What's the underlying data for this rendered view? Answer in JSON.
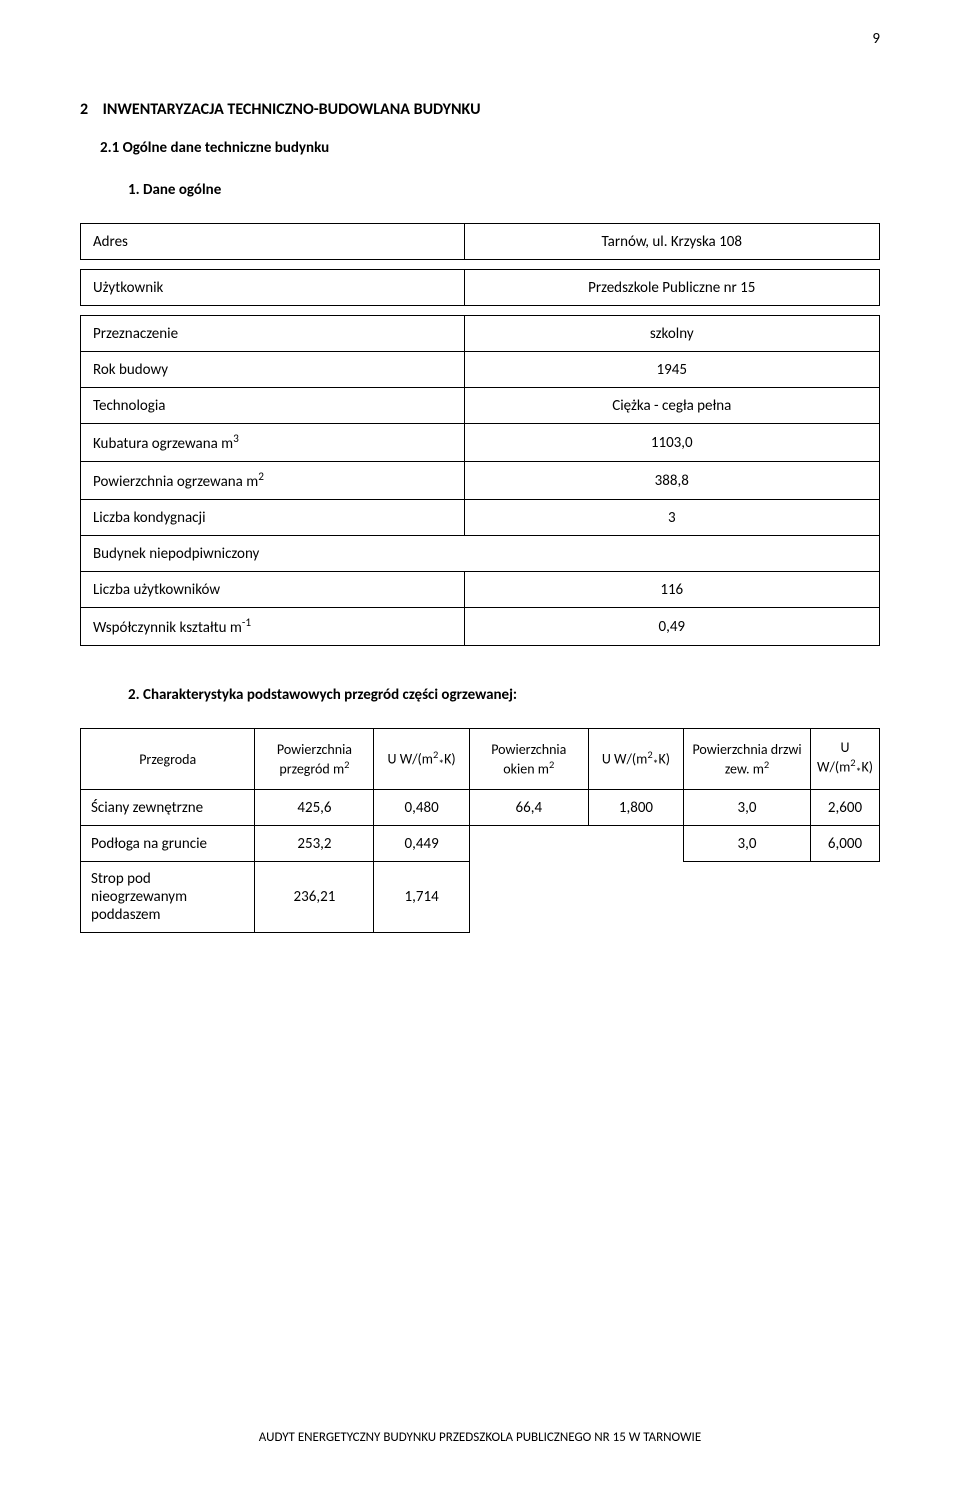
{
  "page_number": "9",
  "section": {
    "number": "2",
    "title": "INWENTARYZACJA TECHNICZNO-BUDOWLANA BUDYNKU"
  },
  "subsection": {
    "number": "2.1",
    "title": "Ogólne dane  techniczne budynku"
  },
  "list_item_1": {
    "number": "1.",
    "title": "Dane ogólne"
  },
  "table1": {
    "rows": [
      {
        "label": "Adres",
        "value": "Tarnów, ul. Krzyska 108"
      },
      {
        "label": "Użytkownik",
        "value": "Przedszkole Publiczne nr 15"
      },
      {
        "label": "Przeznaczenie",
        "value": "szkolny"
      },
      {
        "label": "Rok budowy",
        "value": "1945"
      },
      {
        "label": "Technologia",
        "value": "Ciężka - cegła pełna"
      },
      {
        "label_html": "Kubatura ogrzewana m<sup>3</sup>",
        "value": "1103,0"
      },
      {
        "label_html": "Powierzchnia ogrzewana m<sup>2</sup>",
        "value": "388,8"
      },
      {
        "label": "Liczba kondygnacji",
        "value": "3"
      },
      {
        "label": "Budynek niepodpiwniczony",
        "value": "",
        "full_row": true
      },
      {
        "label": "Liczba użytkowników",
        "value": "116"
      },
      {
        "label_html": "Współczynnik kształtu m<sup>-1</sup>",
        "value": "0,49"
      }
    ]
  },
  "list_item_2": {
    "number": "2.",
    "title": "Charakterystyka podstawowych przegród części ogrzewanej:"
  },
  "table2": {
    "headers": [
      "Przegroda",
      "Powierzchnia przegród m<sup>2</sup>",
      "U W/(m<sup>2</sup><sub>*</sub>K)",
      "Powierzchnia okien m<sup>2</sup>",
      "U W/(m<sup>2</sup><sub>*</sub>K)",
      "Powierzchnia drzwi zew. m<sup>2</sup>",
      "U W/(m<sup>2</sup><sub>*</sub>K)"
    ],
    "rows": [
      {
        "label": "Ściany zewnętrzne",
        "c1": "425,6",
        "c2": "0,480",
        "c3": "66,4",
        "c4": "1,800",
        "c5": "3,0",
        "c6": "2,600"
      },
      {
        "label": "Podłoga na gruncie",
        "c1": "253,2",
        "c2": "0,449",
        "c3": "",
        "c4": "",
        "c5": "3,0",
        "c6": "6,000"
      },
      {
        "label": "Strop pod nieogrzewanym poddaszem",
        "c1": "236,21",
        "c2": "1,714",
        "c3": "",
        "c4": "",
        "c5": "",
        "c6": ""
      }
    ],
    "col_widths": [
      "22%",
      "15%",
      "12%",
      "15%",
      "12%",
      "16%",
      "12%"
    ]
  },
  "footer": "AUDYT ENERGETYCZNY BUDYNKU PRZEDSZKOLA PUBLICZNEGO NR 15 W TARNOWIE"
}
